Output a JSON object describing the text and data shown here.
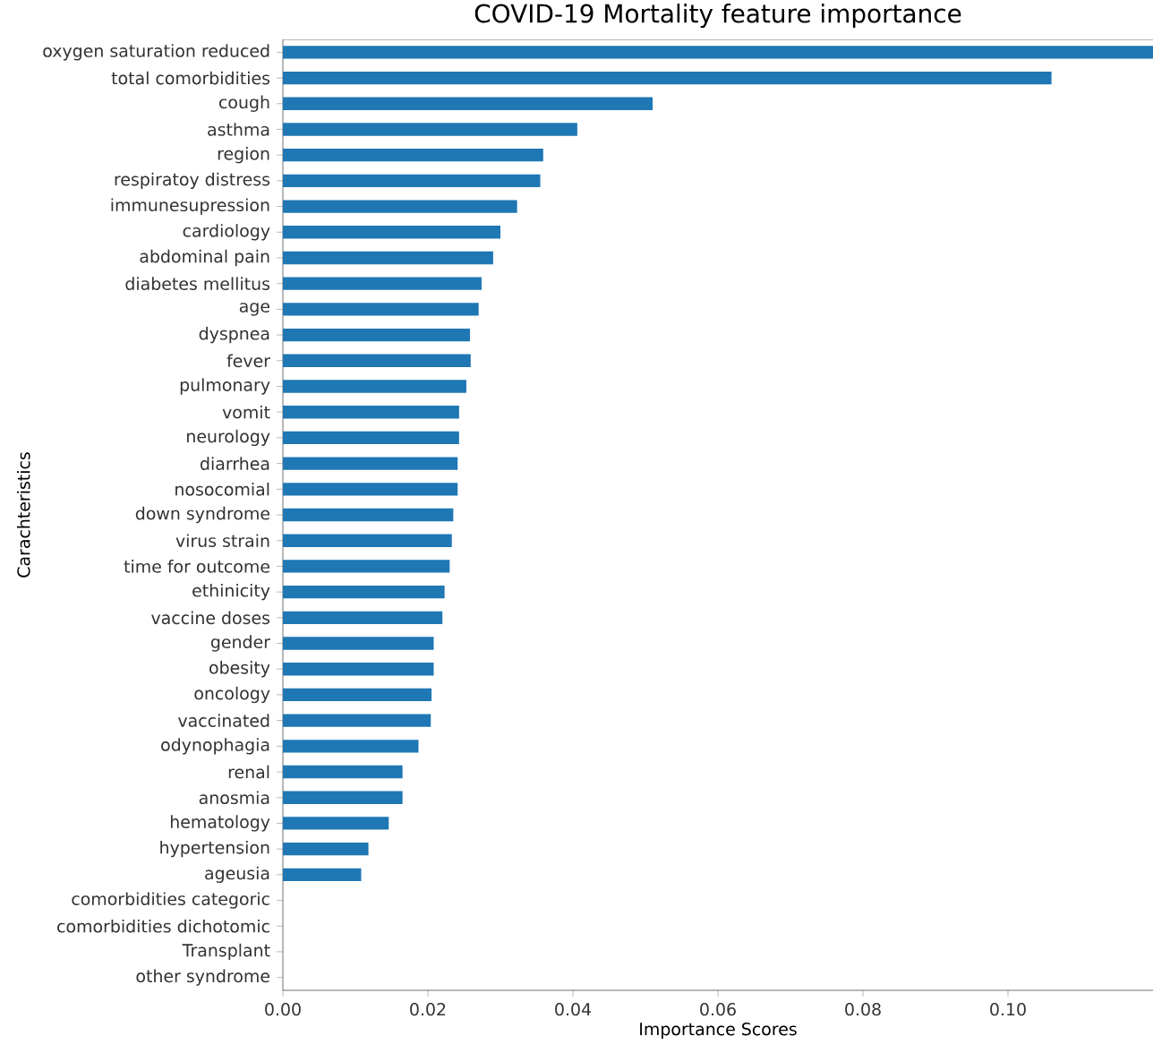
{
  "chart_data": {
    "type": "bar",
    "orientation": "horizontal",
    "title": "COVID-19 Mortality feature importance",
    "xlabel": "Importance Scores",
    "ylabel": "Carachteristics",
    "categories": [
      "oxygen saturation reduced",
      "total comorbidities",
      "cough",
      "asthma",
      "region",
      "respiratoy distress",
      "immunesupression",
      "cardiology",
      "abdominal pain",
      "diabetes mellitus",
      "age",
      "dyspnea",
      "fever",
      "pulmonary",
      "vomit",
      "neurology",
      "diarrhea",
      "nosocomial",
      "down syndrome",
      "virus strain",
      "time for outcome",
      "ethinicity",
      "vaccine doses",
      "gender",
      "obesity",
      "oncology",
      "vaccinated",
      "odynophagia",
      "renal",
      "anosmia",
      "hematology",
      "hypertension",
      "ageusia",
      "comorbidities categoric",
      "comorbidities dichotomic",
      "Transplant",
      "other syndrome"
    ],
    "values": [
      0.12,
      0.106,
      0.051,
      0.0406,
      0.0359,
      0.0355,
      0.0323,
      0.03,
      0.029,
      0.0274,
      0.027,
      0.0258,
      0.0259,
      0.0253,
      0.0243,
      0.0243,
      0.0241,
      0.0241,
      0.0235,
      0.0233,
      0.023,
      0.0223,
      0.022,
      0.0208,
      0.0208,
      0.0205,
      0.0204,
      0.0187,
      0.0165,
      0.0165,
      0.0146,
      0.0118,
      0.0108,
      0,
      0,
      0,
      0
    ],
    "color": "#1f77b4",
    "xlim": [
      0,
      0.12
    ],
    "xticks": [
      {
        "value": 0,
        "label": "0.00"
      },
      {
        "value": 0.02,
        "label": "0.02"
      },
      {
        "value": 0.04,
        "label": "0.04"
      },
      {
        "value": 0.06,
        "label": "0.06"
      },
      {
        "value": 0.08,
        "label": "0.08"
      },
      {
        "value": 0.1,
        "label": "0.10"
      }
    ]
  }
}
